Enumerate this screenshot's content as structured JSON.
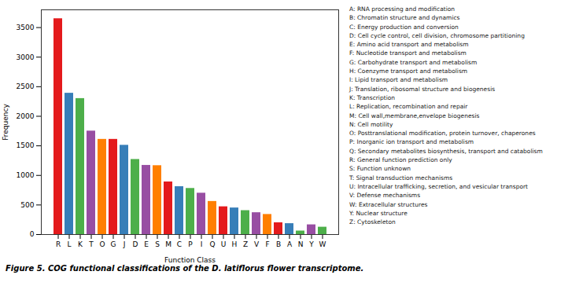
{
  "chart_data": {
    "type": "bar",
    "categories": [
      "R",
      "L",
      "K",
      "T",
      "O",
      "G",
      "J",
      "D",
      "E",
      "S",
      "M",
      "C",
      "P",
      "I",
      "Q",
      "U",
      "H",
      "Z",
      "V",
      "F",
      "B",
      "A",
      "N",
      "Y",
      "W"
    ],
    "values": [
      3650,
      2390,
      2300,
      1750,
      1610,
      1610,
      1510,
      1270,
      1170,
      1165,
      890,
      810,
      780,
      700,
      560,
      470,
      450,
      405,
      370,
      340,
      200,
      185,
      60,
      165,
      125
    ],
    "colors": [
      "#e41a1c",
      "#377eb8",
      "#4daf4a",
      "#984ea3",
      "#ff7f00",
      "#e41a1c",
      "#377eb8",
      "#4daf4a",
      "#984ea3",
      "#ff7f00",
      "#e41a1c",
      "#377eb8",
      "#4daf4a",
      "#984ea3",
      "#ff7f00",
      "#e41a1c",
      "#377eb8",
      "#4daf4a",
      "#984ea3",
      "#ff7f00",
      "#e41a1c",
      "#377eb8",
      "#4daf4a",
      "#984ea3",
      "#4daf4a"
    ],
    "xlabel": "Function Class",
    "ylabel": "Frequency",
    "ylim": [
      0,
      3800
    ],
    "yticks": [
      0,
      500,
      1000,
      1500,
      2000,
      2500,
      3000,
      3500
    ],
    "annotations": [
      "A: RNA processing and modification",
      "B: Chromatin structure and dynamics",
      "C: Energy production and conversion",
      "D: Cell cycle control, cell division, chromosome partitioning",
      "E: Amino acid transport and metabolism",
      "F: Nucleotide transport and metabolism",
      "G: Carbohydrate transport and metabolism",
      "H: Coenzyme transport and metabolism",
      "I: Lipid transport and metabolism",
      "J: Translation, ribosomal structure and biogenesis",
      "K: Transcription",
      "L: Replication, recombination and repair",
      "M: Cell wall,membrane,envelope biogenesis",
      "N: Cell motility",
      "O: Posttranslational modification, protein turnover, chaperones",
      "P: Inorganic ion transport and metabolism",
      "Q: Secondary metabolites biosynthesis, transport and catabolism",
      "R: General function prediction only",
      "S: Function unknown",
      "T: Signal transduction mechanisms",
      "U: Intracellular trafficking, secretion, and vesicular transport",
      "V: Defense mechanisms",
      "W: Extracellular structures",
      "Y: Nuclear structure",
      "Z: Cytoskeleton"
    ],
    "caption": "Figure 5. COG functional classifications of the D. latiflorus flower transcriptome."
  }
}
